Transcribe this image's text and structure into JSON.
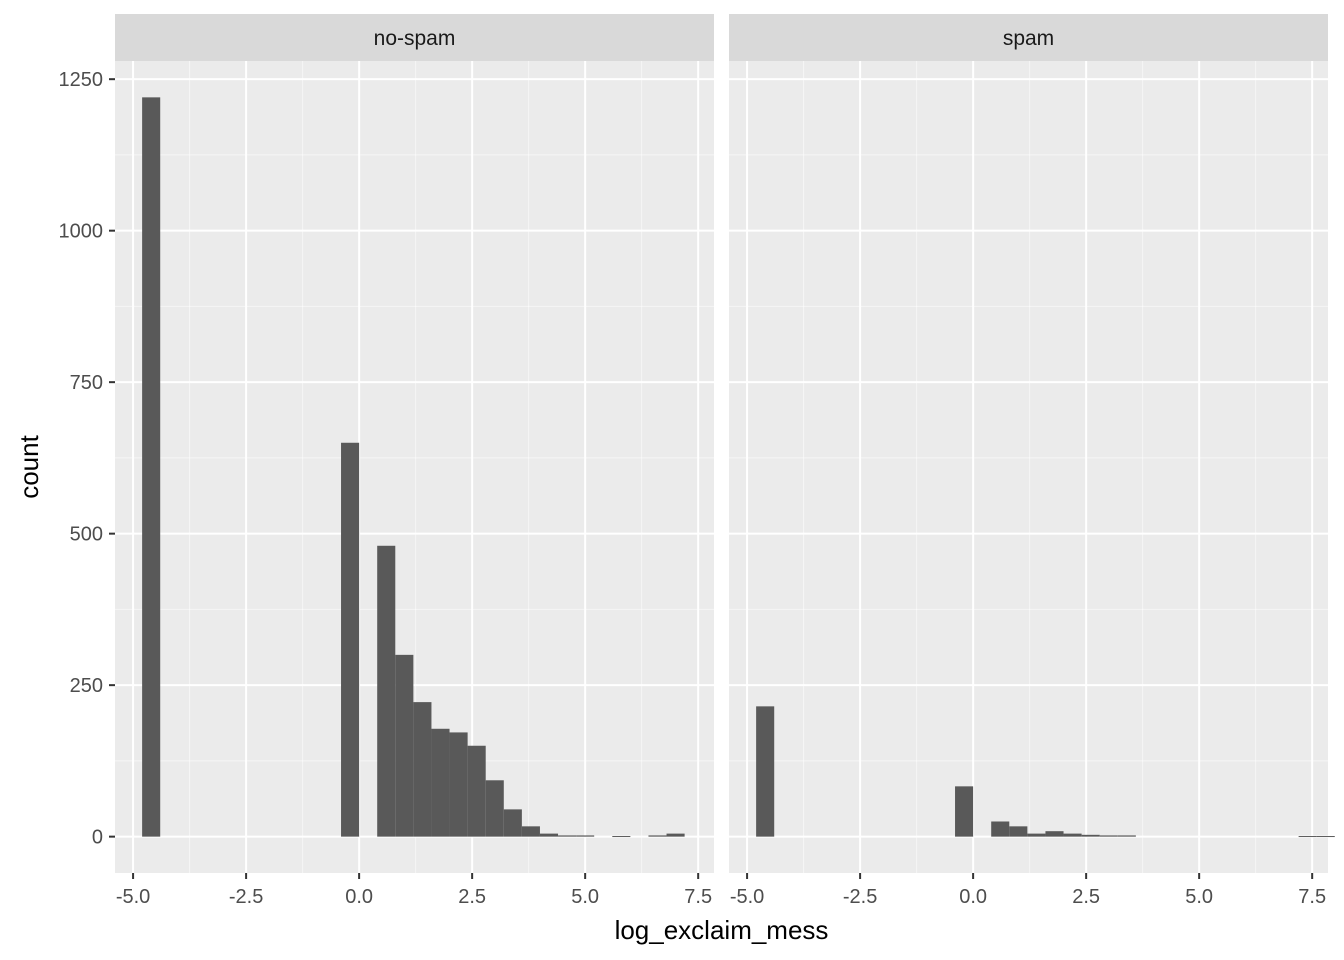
{
  "chart_data": {
    "type": "bar",
    "xlabel": "log_exclaim_mess",
    "ylabel": "count",
    "xlim": [
      -5.4,
      7.85
    ],
    "ylim": [
      -60,
      1280
    ],
    "x_ticks": [
      {
        "value": -5.0,
        "label": "-5.0"
      },
      {
        "value": -2.5,
        "label": "-2.5"
      },
      {
        "value": 0.0,
        "label": "0.0"
      },
      {
        "value": 2.5,
        "label": "2.5"
      },
      {
        "value": 5.0,
        "label": "5.0"
      },
      {
        "value": 7.5,
        "label": "7.5"
      }
    ],
    "y_ticks": [
      {
        "value": 0,
        "label": "0"
      },
      {
        "value": 250,
        "label": "250"
      },
      {
        "value": 500,
        "label": "500"
      },
      {
        "value": 750,
        "label": "750"
      },
      {
        "value": 1000,
        "label": "1000"
      },
      {
        "value": 1250,
        "label": "1250"
      }
    ],
    "grid": true,
    "bin_width": 0.4,
    "bin_start": -4.8,
    "colors": {
      "bar": "#595959",
      "panel_bg": "#ebebeb",
      "grid_major": "#ffffff",
      "strip_bg": "#d9d9d9",
      "tick": "#333333"
    },
    "panels": [
      {
        "strip_label": "no-spam",
        "counts": [
          1220,
          0,
          0,
          0,
          0,
          0,
          0,
          0,
          0,
          0,
          0,
          650,
          0,
          480,
          300,
          222,
          178,
          172,
          150,
          93,
          45,
          17,
          5,
          2,
          2,
          0,
          1,
          0,
          2,
          5
        ]
      },
      {
        "strip_label": "spam",
        "counts": [
          215,
          0,
          0,
          0,
          0,
          0,
          0,
          0,
          0,
          0,
          0,
          83,
          0,
          25,
          17,
          5,
          9,
          5,
          3,
          2,
          2,
          0,
          0,
          0,
          0,
          0,
          0,
          0,
          0,
          0,
          1,
          1
        ]
      }
    ]
  }
}
